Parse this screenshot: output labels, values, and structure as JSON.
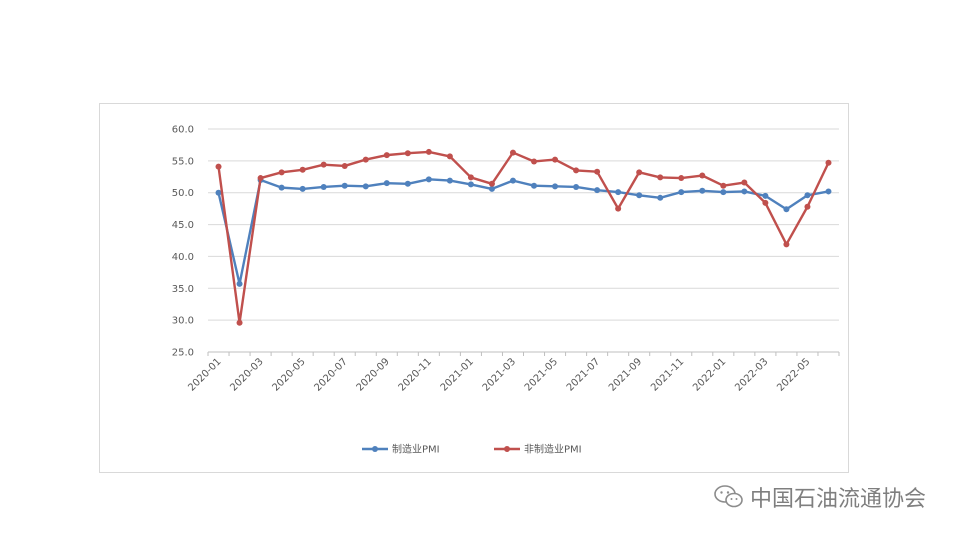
{
  "watermark": {
    "text": "中国石油流通协会",
    "icon": "wechat-icon"
  },
  "chart_data": {
    "type": "line",
    "title": "",
    "xlabel": "",
    "ylabel": "",
    "ylim": [
      25,
      60
    ],
    "yticks": [
      "25.0",
      "30.0",
      "35.0",
      "40.0",
      "45.0",
      "50.0",
      "55.0",
      "60.0"
    ],
    "grid": true,
    "legend_position": "bottom",
    "x": [
      "2020-01",
      "2020-02",
      "2020-03",
      "2020-04",
      "2020-05",
      "2020-06",
      "2020-07",
      "2020-08",
      "2020-09",
      "2020-10",
      "2020-11",
      "2020-12",
      "2021-01",
      "2021-02",
      "2021-03",
      "2021-04",
      "2021-05",
      "2021-06",
      "2021-07",
      "2021-08",
      "2021-09",
      "2021-10",
      "2021-11",
      "2021-12",
      "2022-01",
      "2022-02",
      "2022-03",
      "2022-04",
      "2022-05",
      "2022-06"
    ],
    "xtick_labels": [
      "2020-01",
      "2020-03",
      "2020-05",
      "2020-07",
      "2020-09",
      "2020-11",
      "2021-01",
      "2021-03",
      "2021-05",
      "2021-07",
      "2021-09",
      "2021-11",
      "2022-01",
      "2022-03",
      "2022-05"
    ],
    "series": [
      {
        "name": "制造业PMI",
        "color": "#4f81bd",
        "values": [
          50.0,
          35.7,
          52.0,
          50.8,
          50.6,
          50.9,
          51.1,
          51.0,
          51.5,
          51.4,
          52.1,
          51.9,
          51.3,
          50.6,
          51.9,
          51.1,
          51.0,
          50.9,
          50.4,
          50.1,
          49.6,
          49.2,
          50.1,
          50.3,
          50.1,
          50.2,
          49.5,
          47.4,
          49.6,
          50.2
        ]
      },
      {
        "name": "非制造业PMI",
        "color": "#c0504d",
        "values": [
          54.1,
          29.6,
          52.3,
          53.2,
          53.6,
          54.4,
          54.2,
          55.2,
          55.9,
          56.2,
          56.4,
          55.7,
          52.4,
          51.4,
          56.3,
          54.9,
          55.2,
          53.5,
          53.3,
          47.5,
          53.2,
          52.4,
          52.3,
          52.7,
          51.1,
          51.6,
          48.4,
          41.9,
          47.8,
          54.7
        ]
      }
    ]
  }
}
